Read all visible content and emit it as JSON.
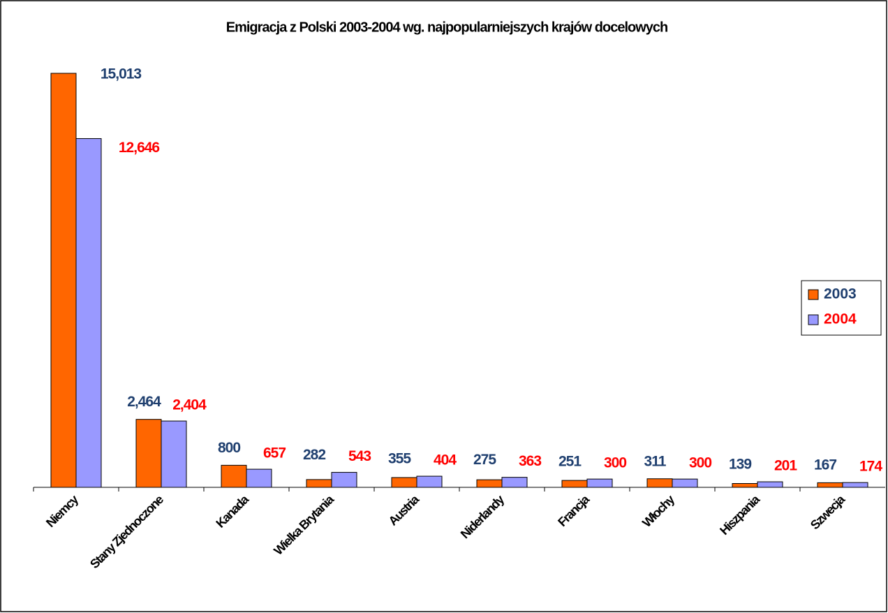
{
  "chart_data": {
    "type": "bar",
    "title": "Emigracja z Polski 2003-2004 wg. najpopularniejszych krajów docelowych",
    "categories": [
      "Niemcy",
      "Stany Zjednoczone",
      "Kanada",
      "Wielka Brytania",
      "Austria",
      "Niderlandy",
      "Francja",
      "Włochy",
      "Hiszpania",
      "Szwecja"
    ],
    "series": [
      {
        "name": "2003",
        "color": "#ff6600",
        "label_color": "#1f3f6f",
        "values": [
          15013,
          2464,
          800,
          282,
          355,
          275,
          251,
          311,
          139,
          167
        ],
        "value_labels": [
          "15,013",
          "2,464",
          "800",
          "282",
          "355",
          "275",
          "251",
          "311",
          "139",
          "167"
        ]
      },
      {
        "name": "2004",
        "color": "#9999ff",
        "label_color": "#ff0000",
        "values": [
          12646,
          2404,
          657,
          543,
          404,
          363,
          300,
          300,
          201,
          174
        ],
        "value_labels": [
          "12,646",
          "2,404",
          "657",
          "543",
          "404",
          "363",
          "300",
          "300",
          "201",
          "174"
        ]
      }
    ],
    "ylim": [
      0,
      16000
    ],
    "legend": "right"
  }
}
